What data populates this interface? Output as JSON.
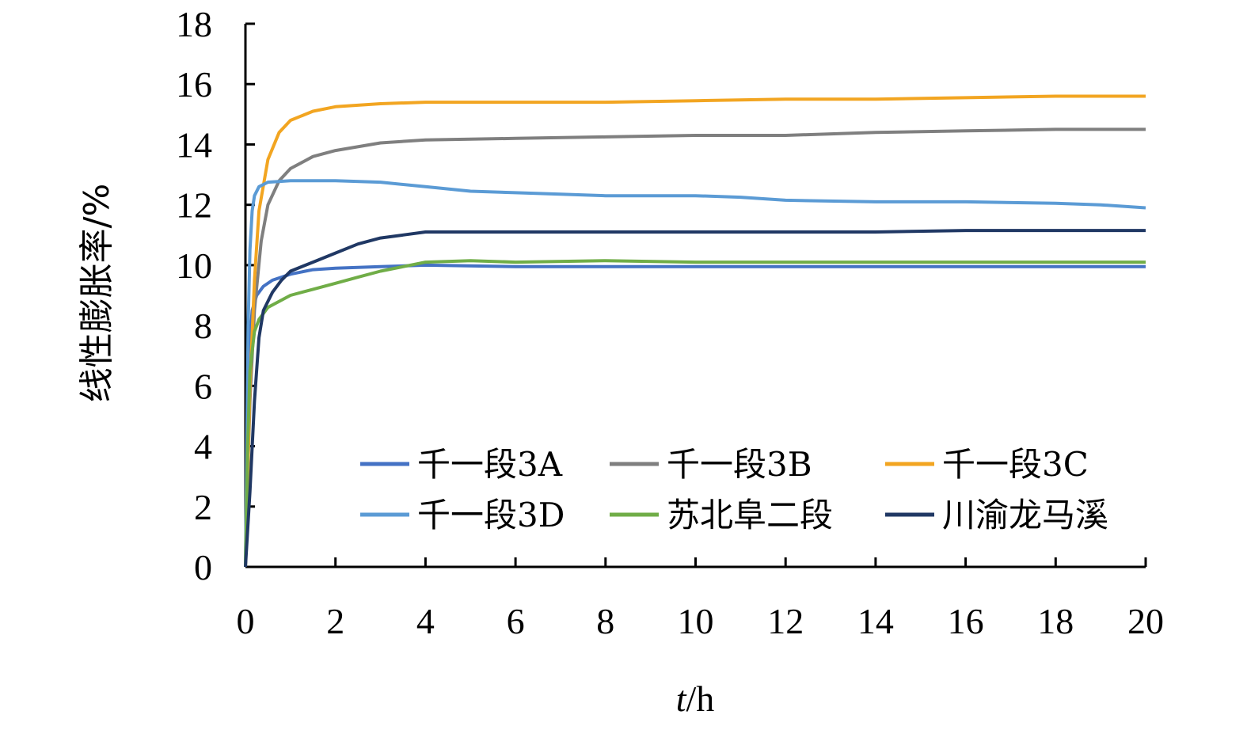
{
  "chart_data": {
    "type": "line",
    "title": "",
    "xlabel_italic": "t",
    "xlabel_unit": "/h",
    "ylabel": "线性膨胀率/%",
    "xlim": [
      0,
      20
    ],
    "ylim": [
      0,
      18
    ],
    "xticks": [
      0,
      2,
      4,
      6,
      8,
      10,
      12,
      14,
      16,
      18,
      20
    ],
    "yticks": [
      0,
      2,
      4,
      6,
      8,
      10,
      12,
      14,
      16,
      18
    ],
    "grid": false,
    "legend_placement": "bottom-right",
    "series": [
      {
        "name": "千一段3A",
        "color": "#4472C4",
        "points": [
          [
            0,
            0
          ],
          [
            0.05,
            5
          ],
          [
            0.1,
            7.5
          ],
          [
            0.15,
            8.5
          ],
          [
            0.25,
            9.0
          ],
          [
            0.4,
            9.3
          ],
          [
            0.6,
            9.5
          ],
          [
            1.0,
            9.7
          ],
          [
            1.5,
            9.85
          ],
          [
            2,
            9.9
          ],
          [
            3,
            9.95
          ],
          [
            4,
            10.0
          ],
          [
            6,
            9.95
          ],
          [
            8,
            9.95
          ],
          [
            10,
            9.95
          ],
          [
            12,
            9.95
          ],
          [
            14,
            9.95
          ],
          [
            16,
            9.95
          ],
          [
            18,
            9.95
          ],
          [
            20,
            9.95
          ]
        ]
      },
      {
        "name": "千一段3B",
        "color": "#7F7F7F",
        "points": [
          [
            0,
            0
          ],
          [
            0.05,
            3
          ],
          [
            0.1,
            5.5
          ],
          [
            0.2,
            8.5
          ],
          [
            0.35,
            10.8
          ],
          [
            0.5,
            12.0
          ],
          [
            0.75,
            12.8
          ],
          [
            1.0,
            13.2
          ],
          [
            1.5,
            13.6
          ],
          [
            2,
            13.8
          ],
          [
            3,
            14.05
          ],
          [
            4,
            14.15
          ],
          [
            6,
            14.2
          ],
          [
            8,
            14.25
          ],
          [
            10,
            14.3
          ],
          [
            12,
            14.3
          ],
          [
            14,
            14.4
          ],
          [
            16,
            14.45
          ],
          [
            18,
            14.5
          ],
          [
            20,
            14.5
          ]
        ]
      },
      {
        "name": "千一段3C",
        "color": "#F2A521",
        "points": [
          [
            0,
            0
          ],
          [
            0.05,
            3
          ],
          [
            0.1,
            6
          ],
          [
            0.2,
            9.5
          ],
          [
            0.3,
            11.8
          ],
          [
            0.5,
            13.5
          ],
          [
            0.75,
            14.4
          ],
          [
            1.0,
            14.8
          ],
          [
            1.5,
            15.1
          ],
          [
            2,
            15.25
          ],
          [
            3,
            15.35
          ],
          [
            4,
            15.4
          ],
          [
            6,
            15.4
          ],
          [
            8,
            15.4
          ],
          [
            10,
            15.45
          ],
          [
            12,
            15.5
          ],
          [
            14,
            15.5
          ],
          [
            16,
            15.55
          ],
          [
            18,
            15.6
          ],
          [
            20,
            15.6
          ]
        ]
      },
      {
        "name": "千一段3D",
        "color": "#5B9BD5",
        "points": [
          [
            0,
            0
          ],
          [
            0.03,
            4
          ],
          [
            0.06,
            8
          ],
          [
            0.1,
            10.5
          ],
          [
            0.15,
            11.8
          ],
          [
            0.2,
            12.3
          ],
          [
            0.3,
            12.6
          ],
          [
            0.5,
            12.75
          ],
          [
            1,
            12.8
          ],
          [
            2,
            12.8
          ],
          [
            3,
            12.75
          ],
          [
            4,
            12.6
          ],
          [
            5,
            12.45
          ],
          [
            6,
            12.4
          ],
          [
            7,
            12.35
          ],
          [
            8,
            12.3
          ],
          [
            10,
            12.3
          ],
          [
            11,
            12.25
          ],
          [
            12,
            12.15
          ],
          [
            14,
            12.1
          ],
          [
            16,
            12.1
          ],
          [
            18,
            12.05
          ],
          [
            19,
            12.0
          ],
          [
            20,
            11.9
          ]
        ]
      },
      {
        "name": "苏北阜二段",
        "color": "#70AD47",
        "points": [
          [
            0,
            0
          ],
          [
            0.05,
            4
          ],
          [
            0.1,
            6.5
          ],
          [
            0.2,
            7.8
          ],
          [
            0.3,
            8.2
          ],
          [
            0.5,
            8.6
          ],
          [
            1,
            9.0
          ],
          [
            1.5,
            9.2
          ],
          [
            2,
            9.4
          ],
          [
            2.5,
            9.6
          ],
          [
            3,
            9.8
          ],
          [
            3.5,
            9.95
          ],
          [
            4,
            10.1
          ],
          [
            5,
            10.15
          ],
          [
            6,
            10.1
          ],
          [
            8,
            10.15
          ],
          [
            10,
            10.1
          ],
          [
            12,
            10.1
          ],
          [
            14,
            10.1
          ],
          [
            16,
            10.1
          ],
          [
            18,
            10.1
          ],
          [
            20,
            10.1
          ]
        ]
      },
      {
        "name": "川渝龙马溪",
        "color": "#203864",
        "points": [
          [
            0,
            0
          ],
          [
            0.1,
            2.5
          ],
          [
            0.2,
            5.5
          ],
          [
            0.3,
            7.6
          ],
          [
            0.4,
            8.5
          ],
          [
            0.6,
            9.1
          ],
          [
            0.8,
            9.5
          ],
          [
            1.0,
            9.8
          ],
          [
            1.5,
            10.1
          ],
          [
            2,
            10.4
          ],
          [
            2.5,
            10.7
          ],
          [
            3,
            10.9
          ],
          [
            3.5,
            11.0
          ],
          [
            4,
            11.1
          ],
          [
            6,
            11.1
          ],
          [
            8,
            11.1
          ],
          [
            10,
            11.1
          ],
          [
            12,
            11.1
          ],
          [
            14,
            11.1
          ],
          [
            16,
            11.15
          ],
          [
            18,
            11.15
          ],
          [
            20,
            11.15
          ]
        ]
      }
    ]
  }
}
